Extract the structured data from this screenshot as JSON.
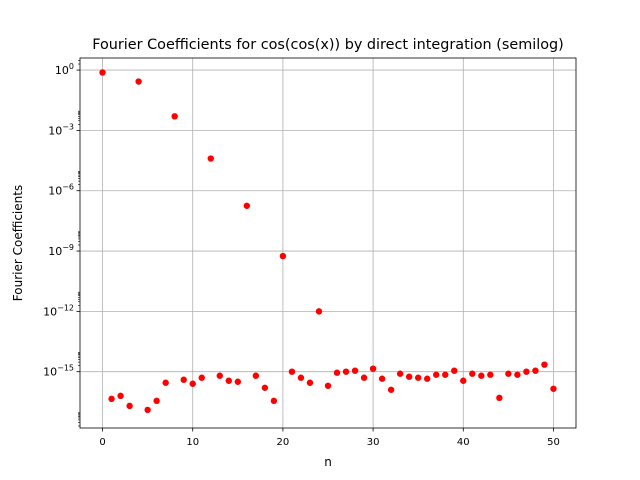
{
  "chart_data": {
    "type": "scatter",
    "title": "Fourier Coefficients for cos(cos(x)) by direct integration (semilog)",
    "xlabel": "n",
    "ylabel": "Fourier Coefficients",
    "yscale": "log",
    "grid": true,
    "marker_color": "#ff0000",
    "xlim": [
      -2.5,
      52.5
    ],
    "ylim_exponent": [
      -17.8,
      0.6
    ],
    "x_ticks": [
      0,
      10,
      20,
      30,
      40,
      50
    ],
    "y_tick_exponents": [
      0,
      -3,
      -6,
      -9,
      -12,
      -15
    ],
    "y_tick_labels": [
      "10^0",
      "10^-3",
      "10^-6",
      "10^-9",
      "10^-12",
      "10^-15"
    ],
    "series": [
      {
        "x": [
          0,
          1,
          2,
          3,
          4,
          5,
          6,
          7,
          8,
          9,
          10,
          11,
          12,
          13,
          14,
          15,
          16,
          17,
          18,
          19,
          20,
          21,
          22,
          23,
          24,
          25,
          26,
          27,
          28,
          29,
          30,
          31,
          32,
          33,
          34,
          35,
          36,
          37,
          38,
          39,
          40,
          41,
          42,
          43,
          44,
          45,
          46,
          47,
          48,
          49,
          50
        ],
        "y_exponent": [
          -0.12,
          -16.35,
          -16.2,
          -16.7,
          -0.57,
          -16.9,
          -16.45,
          -15.55,
          -2.3,
          -15.4,
          -15.6,
          -15.3,
          -4.4,
          -15.2,
          -15.45,
          -15.5,
          -6.75,
          -15.2,
          -15.8,
          -16.45,
          -9.25,
          -15.0,
          -15.3,
          -15.55,
          -12.0,
          -15.7,
          -15.05,
          -15.0,
          -14.95,
          -15.3,
          -14.85,
          -15.35,
          -15.9,
          -15.1,
          -15.25,
          -15.3,
          -15.35,
          -15.15,
          -15.15,
          -14.95,
          -15.45,
          -15.1,
          -15.2,
          -15.15,
          -16.3,
          -15.1,
          -15.15,
          -15.0,
          -14.95,
          -14.65,
          -15.85
        ]
      }
    ]
  }
}
